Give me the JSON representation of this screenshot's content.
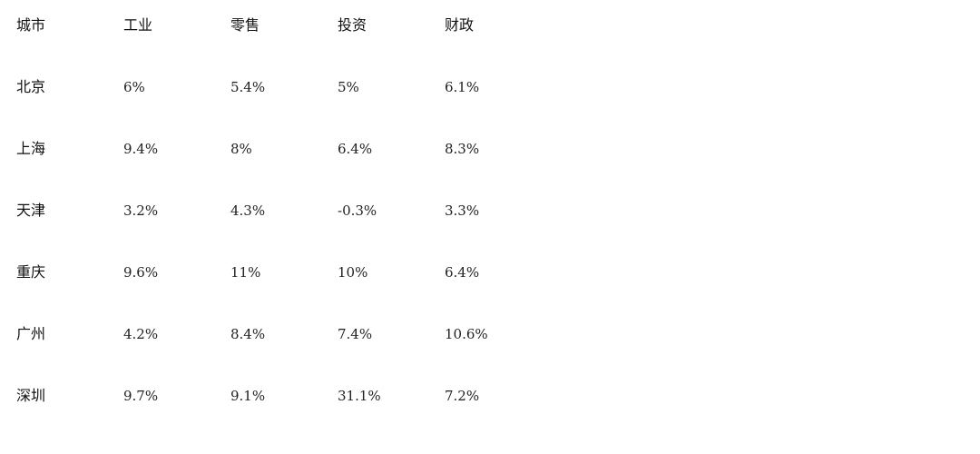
{
  "chart_data": {
    "type": "table",
    "columns": [
      "城市",
      "工业",
      "零售",
      "投资",
      "财政"
    ],
    "rows": [
      [
        "北京",
        "6%",
        "5.4%",
        "5%",
        "6.1%"
      ],
      [
        "上海",
        "9.4%",
        "8%",
        "6.4%",
        "8.3%"
      ],
      [
        "天津",
        "3.2%",
        "4.3%",
        "-0.3%",
        "3.3%"
      ],
      [
        "重庆",
        "9.6%",
        "11%",
        "10%",
        "6.4%"
      ],
      [
        "广州",
        "4.2%",
        "8.4%",
        "7.4%",
        "10.6%"
      ],
      [
        "深圳",
        "9.7%",
        "9.1%",
        "31.1%",
        "7.2%"
      ]
    ]
  }
}
